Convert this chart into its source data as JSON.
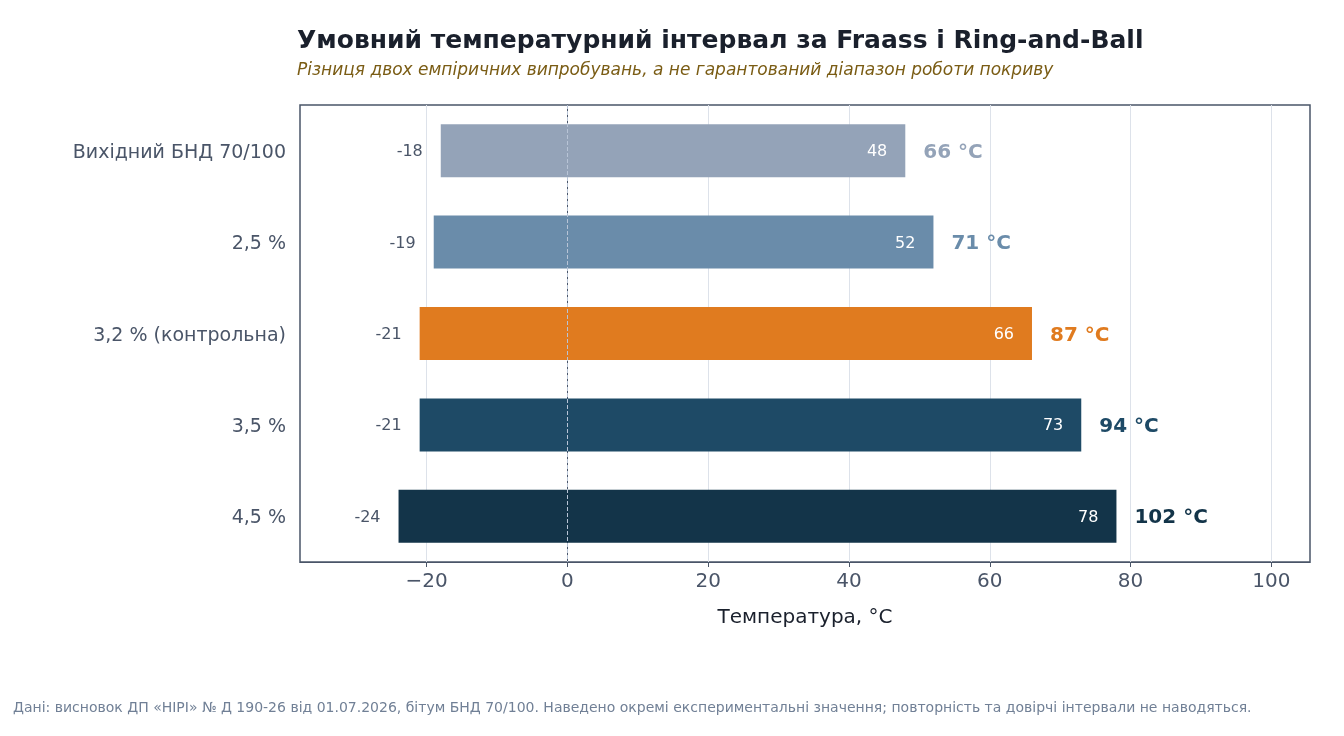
{
  "chart_data": {
    "type": "bar",
    "orientation": "horizontal",
    "title": "Умовний температурний інтервал за Fraass і Ring-and-Ball",
    "subtitle": "Різниця двох емпіричних випробувань, а не гарантований діапазон роботи покриву",
    "xlabel": "Температура, °C",
    "categories": [
      "Вихідний БНД 70/100",
      "2,5 %",
      "3,2 % (контрольна)",
      "3,5 %",
      "4,5 %"
    ],
    "base": [
      -18,
      -19,
      -21,
      -21,
      -24
    ],
    "values": [
      66,
      71,
      87,
      94,
      102
    ],
    "value_labels": [
      "66 °C",
      "71 °C",
      "87 °C",
      "94 °C",
      "102 °C"
    ],
    "colors": [
      "#94a3b8",
      "#6a8caa",
      "#e07b1f",
      "#1e4a66",
      "#133449"
    ],
    "xlim": [
      -38,
      105.5
    ],
    "xticks": [
      {
        "value": -20,
        "label": "−20"
      },
      0,
      20,
      40,
      60,
      80,
      100
    ],
    "grid": "x",
    "ref_lines": [
      {
        "axis": "x",
        "value": 0,
        "label": null,
        "color": "#b8c4d6",
        "line_style": "dashed"
      }
    ],
    "annotations": [
      {
        "text": "-18",
        "x": -18,
        "y": "Вихідний БНД 70/100"
      },
      {
        "text": "48",
        "x": 48,
        "y": "Вихідний БНД 70/100"
      },
      {
        "text": "-19",
        "x": -19,
        "y": "2,5 %"
      },
      {
        "text": "52",
        "x": 52,
        "y": "2,5 %"
      },
      {
        "text": "-21",
        "x": -21,
        "y": "3,2 % (контрольна)"
      },
      {
        "text": "66",
        "x": 66,
        "y": "3,2 % (контрольна)"
      },
      {
        "text": "-21",
        "x": -21,
        "y": "3,5 %"
      },
      {
        "text": "73",
        "x": 73,
        "y": "3,5 %"
      },
      {
        "text": "-24",
        "x": -24,
        "y": "4,5 %"
      },
      {
        "text": "78",
        "x": 78,
        "y": "4,5 %"
      },
      "Дані: висновок ДП «НІРІ» № Д 190-26 від 01.07.2026, бітум БНД 70/100. Наведено окремі експериментальні значення; повторність та довірчі інтервали не наводяться."
    ]
  }
}
